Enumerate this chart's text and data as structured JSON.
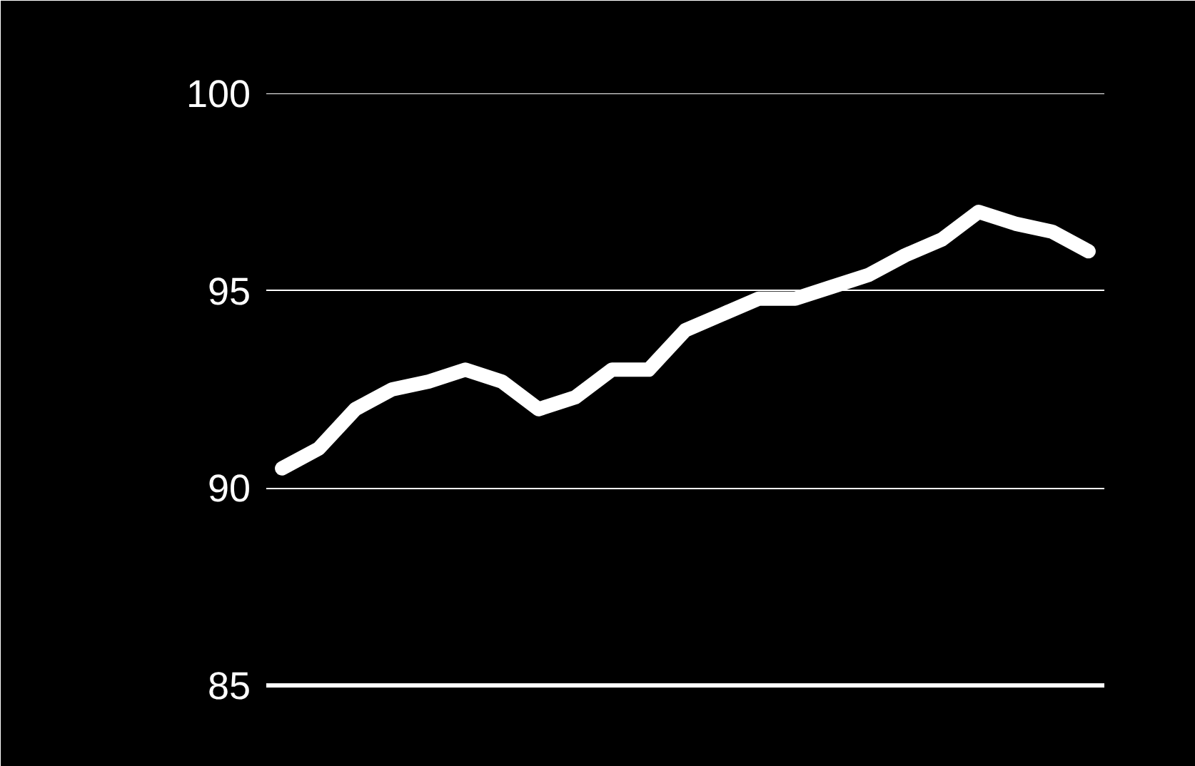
{
  "chart_data": {
    "type": "line",
    "categories": [
      null,
      null,
      null,
      null,
      null,
      null,
      null,
      null,
      null,
      null,
      null,
      null,
      null,
      null,
      null,
      null,
      null,
      null,
      null,
      null,
      null,
      null,
      null
    ],
    "series": [
      {
        "color": "#ffffff",
        "values": [
          90.5,
          91,
          92,
          92.5,
          92.7,
          93,
          92.7,
          92,
          92.3,
          93,
          93,
          94,
          94.4,
          94.8,
          94.8,
          95.1,
          95.4,
          95.9,
          96.3,
          97,
          96.7,
          96.5,
          96
        ]
      }
    ],
    "ylim": [
      85,
      100
    ],
    "yticks": [
      85,
      90,
      95,
      100
    ],
    "grid": "y",
    "tick_labels": "y",
    "marker": "none",
    "line_style": "solid"
  }
}
